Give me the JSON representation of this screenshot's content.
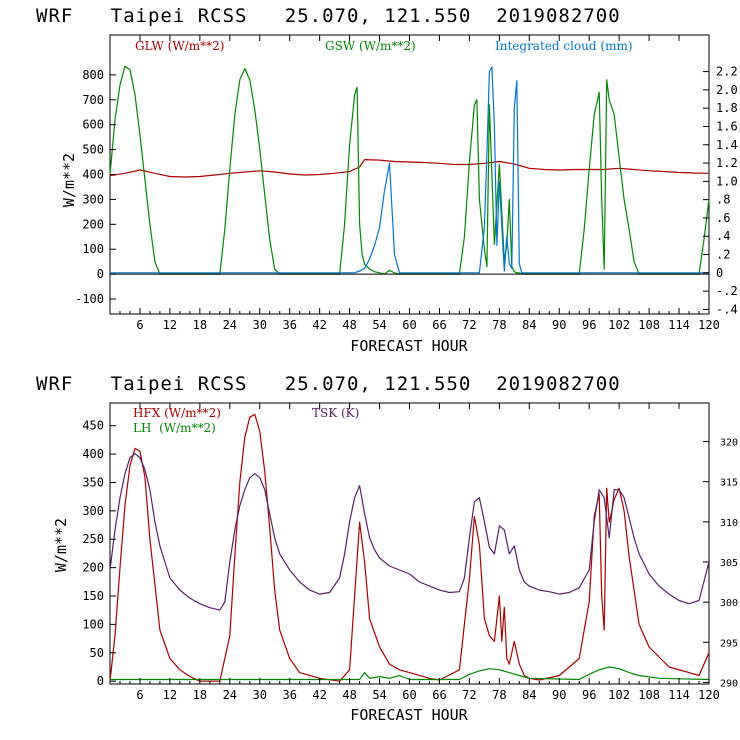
{
  "chart_data": [
    {
      "type": "line",
      "title": "WRF   Taipei RCSS   25.070, 121.550  2019082700",
      "xlabel": "FORECAST HOUR",
      "ylabel": "W/m**2",
      "xlim": [
        0,
        120
      ],
      "ylim": [
        -160,
        960
      ],
      "y2lim": [
        -0.45,
        2.6
      ],
      "x_ticks": [
        6,
        12,
        18,
        24,
        30,
        36,
        42,
        48,
        54,
        60,
        66,
        72,
        78,
        84,
        90,
        96,
        102,
        108,
        114,
        120
      ],
      "x_tick_labels": [
        "6",
        "12",
        "18",
        "24",
        "30",
        "36",
        "42",
        "48",
        "54",
        "60",
        "66",
        "72",
        "78",
        "84",
        "90",
        "96",
        "102",
        "108",
        "114",
        "120"
      ],
      "y_ticks": [
        -100,
        0,
        100,
        200,
        300,
        400,
        500,
        600,
        700,
        800
      ],
      "y_tick_labels": [
        "-100",
        "0",
        "100",
        "200",
        "300",
        "400",
        "500",
        "600",
        "700",
        "800"
      ],
      "y2_ticks": [
        -0.4,
        -0.2,
        0,
        0.2,
        0.4,
        0.6,
        0.8,
        1.0,
        1.2,
        1.4,
        1.6,
        1.8,
        2.0,
        2.2
      ],
      "y2_tick_labels": [
        "-.4",
        "-.2",
        "0",
        ".2",
        ".4",
        ".6",
        ".8",
        "1.0",
        "1.2",
        "1.4",
        "1.6",
        "1.8",
        "2.0",
        "2.2"
      ],
      "legend_placement": "top",
      "series": [
        {
          "name": "GLW (W/m**2)",
          "color": "#aa0000",
          "axis": "left",
          "x": [
            0,
            3,
            6,
            9,
            12,
            15,
            18,
            21,
            24,
            27,
            30,
            33,
            36,
            39,
            42,
            45,
            48,
            50,
            51,
            54,
            57,
            60,
            63,
            66,
            69,
            72,
            75,
            78,
            81,
            84,
            87,
            90,
            93,
            96,
            99,
            102,
            105,
            108,
            111,
            114,
            117,
            120
          ],
          "y": [
            395,
            405,
            418,
            405,
            392,
            390,
            392,
            398,
            405,
            410,
            415,
            410,
            402,
            398,
            400,
            405,
            412,
            430,
            460,
            458,
            452,
            450,
            448,
            445,
            440,
            440,
            445,
            452,
            442,
            425,
            420,
            418,
            420,
            420,
            420,
            425,
            420,
            415,
            412,
            408,
            406,
            405
          ]
        },
        {
          "name": "GSW (W/m**2)",
          "color": "#008800",
          "axis": "left",
          "x": [
            0,
            1,
            2,
            3,
            4,
            5,
            6,
            7,
            8,
            9,
            10,
            11,
            22,
            23,
            24,
            25,
            26,
            27,
            28,
            29,
            30,
            31,
            32,
            33,
            34,
            35,
            46,
            47,
            48,
            49,
            49.5,
            50,
            50.5,
            51,
            52,
            53,
            54,
            55,
            56,
            57,
            58,
            70,
            71,
            72,
            73,
            73.5,
            74,
            75,
            75.5,
            76,
            77,
            78,
            79,
            79.5,
            80,
            80.5,
            81,
            81.5,
            82,
            83,
            84,
            85,
            94,
            95,
            96,
            97,
            98,
            98.5,
            99,
            99.5,
            100,
            101,
            102,
            103,
            104,
            105,
            106,
            107,
            118,
            119,
            120
          ],
          "y": [
            400,
            620,
            760,
            835,
            820,
            720,
            560,
            380,
            200,
            50,
            0,
            0,
            0,
            180,
            420,
            640,
            780,
            825,
            780,
            660,
            500,
            320,
            140,
            20,
            0,
            0,
            0,
            200,
            520,
            720,
            750,
            200,
            80,
            40,
            20,
            10,
            5,
            0,
            15,
            5,
            0,
            0,
            150,
            450,
            680,
            700,
            300,
            100,
            30,
            680,
            120,
            440,
            50,
            120,
            300,
            30,
            10,
            5,
            5,
            0,
            0,
            0,
            0,
            180,
            420,
            640,
            730,
            300,
            20,
            780,
            700,
            640,
            470,
            300,
            180,
            50,
            0,
            0,
            0,
            140,
            300
          ]
        },
        {
          "name": "Integrated cloud (mm)",
          "color": "#0077cc",
          "axis": "right",
          "x": [
            0,
            48,
            49,
            50,
            51,
            52,
            53,
            54,
            55,
            56,
            57,
            58,
            74,
            75,
            75.5,
            76,
            76.5,
            77,
            77.5,
            78,
            79,
            79.5,
            80,
            80.5,
            81,
            81.5,
            82,
            82.5,
            83,
            84,
            120
          ],
          "y": [
            0,
            0,
            0,
            0.02,
            0.05,
            0.15,
            0.3,
            0.5,
            0.9,
            1.2,
            0.2,
            0,
            0,
            0.5,
            1.3,
            2.2,
            2.25,
            1.6,
            0.3,
            1.0,
            0.02,
            0.4,
            0.1,
            0.05,
            1.8,
            2.1,
            0.1,
            0,
            0,
            0,
            0
          ]
        }
      ]
    },
    {
      "type": "line",
      "title": "WRF   Taipei RCSS   25.070, 121.550  2019082700",
      "xlabel": "FORECAST HOUR",
      "ylabel": "W/m**2",
      "xlim": [
        0,
        120
      ],
      "ylim": [
        -5,
        490
      ],
      "y2lim": [
        289.8,
        324.8
      ],
      "x_ticks": [
        6,
        12,
        18,
        24,
        30,
        36,
        42,
        48,
        54,
        60,
        66,
        72,
        78,
        84,
        90,
        96,
        102,
        108,
        114,
        120
      ],
      "x_tick_labels": [
        "6",
        "12",
        "18",
        "24",
        "30",
        "36",
        "42",
        "48",
        "54",
        "60",
        "66",
        "72",
        "78",
        "84",
        "90",
        "96",
        "102",
        "108",
        "114",
        "120"
      ],
      "y_ticks": [
        0,
        50,
        100,
        150,
        200,
        250,
        300,
        350,
        400,
        450
      ],
      "y_tick_labels": [
        "0",
        "50",
        "100",
        "150",
        "200",
        "250",
        "300",
        "350",
        "400",
        "450"
      ],
      "y2_ticks": [
        290,
        295,
        300,
        305,
        310,
        315,
        320
      ],
      "y2_tick_labels": [
        "290",
        "295",
        "300",
        "305",
        "310",
        "315",
        "320"
      ],
      "legend_placement": "top-left",
      "series": [
        {
          "name": "HFX (W/m**2)",
          "color": "#aa0000",
          "axis": "left",
          "x": [
            0,
            1,
            2,
            3,
            4,
            5,
            6,
            7,
            8,
            10,
            12,
            14,
            16,
            18,
            22,
            24,
            25,
            26,
            27,
            28,
            29,
            30,
            31,
            32,
            33,
            34,
            36,
            38,
            42,
            46,
            48,
            49,
            50,
            51,
            52,
            54,
            56,
            58,
            60,
            64,
            66,
            70,
            72,
            73,
            74,
            75,
            76,
            77,
            78,
            78.5,
            79,
            79.5,
            80,
            81,
            82,
            83,
            84,
            86,
            90,
            94,
            96,
            97,
            98,
            98.5,
            99,
            99.5,
            100,
            101,
            102,
            103,
            104,
            106,
            108,
            112,
            116,
            118,
            119,
            120
          ],
          "y": [
            0,
            80,
            200,
            310,
            380,
            410,
            405,
            360,
            250,
            90,
            40,
            20,
            8,
            0,
            0,
            80,
            220,
            350,
            430,
            465,
            470,
            440,
            370,
            270,
            160,
            90,
            40,
            15,
            5,
            0,
            20,
            150,
            280,
            210,
            110,
            60,
            30,
            20,
            15,
            5,
            2,
            20,
            180,
            290,
            240,
            110,
            80,
            70,
            150,
            70,
            130,
            40,
            30,
            70,
            30,
            10,
            5,
            2,
            10,
            40,
            140,
            290,
            330,
            150,
            90,
            340,
            280,
            320,
            340,
            300,
            220,
            100,
            60,
            25,
            15,
            10,
            30,
            50
          ]
        },
        {
          "name": "LH  (W/m**2)",
          "color": "#008800",
          "axis": "left",
          "x": [
            0,
            18,
            24,
            30,
            48,
            50,
            51,
            52,
            54,
            56,
            58,
            60,
            70,
            72,
            74,
            76,
            78,
            80,
            82,
            84,
            94,
            96,
            98,
            100,
            102,
            104,
            106,
            110,
            120
          ],
          "y": [
            3,
            3,
            3,
            3,
            3,
            3,
            15,
            5,
            8,
            5,
            10,
            3,
            3,
            12,
            18,
            22,
            20,
            15,
            10,
            5,
            3,
            12,
            20,
            25,
            22,
            15,
            10,
            5,
            3
          ]
        },
        {
          "name": "TSK (K)",
          "color": "#552266",
          "axis": "right",
          "x": [
            0,
            1,
            2,
            3,
            4,
            5,
            6,
            7,
            8,
            9,
            10,
            11,
            12,
            14,
            16,
            18,
            20,
            22,
            23,
            24,
            25,
            26,
            27,
            28,
            29,
            30,
            31,
            32,
            33,
            34,
            36,
            38,
            40,
            42,
            44,
            46,
            47,
            48,
            49,
            50,
            51,
            52,
            53,
            54,
            56,
            58,
            60,
            62,
            64,
            66,
            68,
            70,
            71,
            72,
            73,
            74,
            75,
            76,
            77,
            78,
            79,
            80,
            81,
            82,
            83,
            84,
            86,
            88,
            90,
            92,
            94,
            96,
            97,
            98,
            99,
            100,
            101,
            102,
            103,
            104,
            105,
            106,
            108,
            110,
            112,
            114,
            116,
            118,
            120
          ],
          "y": [
            304,
            309,
            313,
            316,
            318,
            318.5,
            318,
            316.5,
            314,
            310,
            307,
            305,
            303,
            301.5,
            300.5,
            299.8,
            299.3,
            299,
            300,
            305,
            309,
            312,
            314,
            315.5,
            316,
            315.5,
            314,
            311,
            308,
            306,
            304,
            302.5,
            301.5,
            301,
            301.2,
            303,
            306,
            310,
            313,
            314.5,
            311,
            308,
            306.5,
            305.5,
            304.5,
            304,
            303.5,
            302.5,
            302,
            301.5,
            301.2,
            301.3,
            303,
            308,
            312.5,
            313,
            310,
            306.8,
            306,
            309.5,
            309,
            306,
            307,
            304,
            302.5,
            302,
            301.5,
            301.3,
            301,
            301.2,
            301.8,
            304,
            310,
            314,
            313,
            308,
            314,
            314,
            313,
            310.5,
            308,
            306,
            303.5,
            302,
            301,
            300.2,
            299.8,
            300.2,
            305
          ]
        }
      ]
    }
  ]
}
